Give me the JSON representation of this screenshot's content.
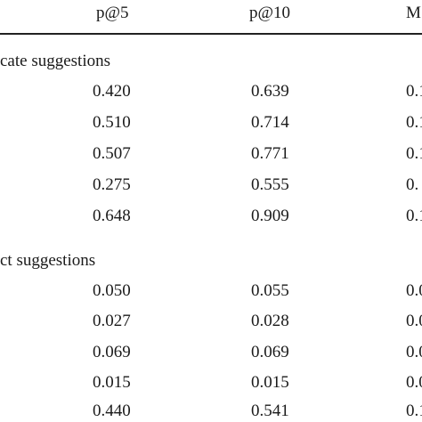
{
  "table": {
    "headers": [
      "p@5",
      "p@10",
      "M"
    ],
    "sections": [
      {
        "label": "cate suggestions",
        "rows": [
          [
            "0.420",
            "0.639",
            "0.1"
          ],
          [
            "0.510",
            "0.714",
            "0.1"
          ],
          [
            "0.507",
            "0.771",
            "0.1"
          ],
          [
            "0.275",
            "0.555",
            "0."
          ],
          [
            "0.648",
            "0.909",
            "0.1"
          ]
        ]
      },
      {
        "label": "ct suggestions",
        "rows": [
          [
            "0.050",
            "0.055",
            "0.0"
          ],
          [
            "0.027",
            "0.028",
            "0.0"
          ],
          [
            "0.069",
            "0.069",
            "0.0"
          ],
          [
            "0.015",
            "0.015",
            "0.0"
          ],
          [
            "0.440",
            "0.541",
            "0.1"
          ]
        ]
      }
    ]
  }
}
